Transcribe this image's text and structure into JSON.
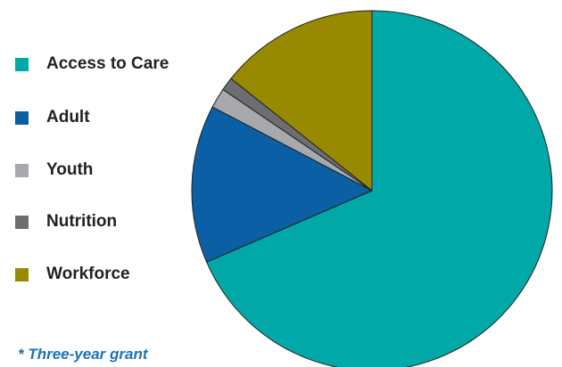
{
  "chart_data": {
    "type": "pie",
    "title": "",
    "slices": [
      {
        "name": "Access to Care",
        "value": 68.5,
        "color": "#00a9a8"
      },
      {
        "name": "Adult",
        "value": 14.2,
        "color": "#0b5fa5"
      },
      {
        "name": "Youth",
        "value": 1.8,
        "color": "#a7a9ac"
      },
      {
        "name": "Nutrition",
        "value": 1.2,
        "color": "#6d6e71"
      },
      {
        "name": "Workforce",
        "value": 14.3,
        "color": "#988a00"
      }
    ],
    "start_angle_deg": 0,
    "direction": "clockwise",
    "legend_position": "left"
  },
  "footnote": "* Three-year grant"
}
